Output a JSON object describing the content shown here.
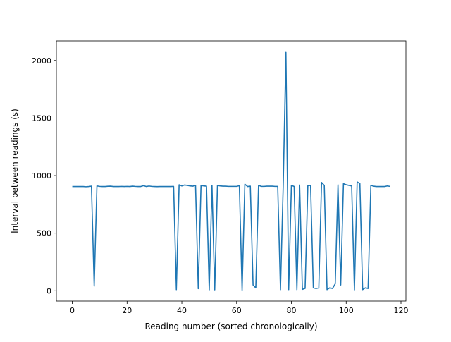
{
  "chart_data": {
    "type": "line",
    "title": "",
    "xlabel": "Reading number (sorted chronologically)",
    "ylabel": "Interval between readings (s)",
    "xlim": [
      -5.8,
      121.8
    ],
    "ylim": [
      -90,
      2170
    ],
    "xticks": [
      0,
      20,
      40,
      60,
      80,
      100,
      120
    ],
    "yticks": [
      0,
      500,
      1000,
      1500,
      2000
    ],
    "grid": false,
    "line_color": "#1f77b4",
    "series": [
      {
        "values": [
          905,
          905,
          905,
          905,
          905,
          903,
          905,
          908,
          40,
          910,
          906,
          905,
          905,
          907,
          908,
          905,
          905,
          905,
          906,
          905,
          906,
          905,
          908,
          906,
          905,
          905,
          912,
          905,
          909,
          906,
          905,
          904,
          905,
          905,
          905,
          905,
          905,
          906,
          10,
          920,
          910,
          918,
          915,
          910,
          908,
          915,
          18,
          915,
          910,
          908,
          8,
          915,
          8,
          915,
          910,
          908,
          908,
          906,
          906,
          906,
          906,
          912,
          5,
          925,
          905,
          908,
          50,
          25,
          915,
          906,
          906,
          908,
          908,
          908,
          906,
          906,
          10,
          910,
          2070,
          10,
          915,
          905,
          10,
          918,
          12,
          20,
          912,
          915,
          25,
          20,
          25,
          940,
          915,
          10,
          25,
          20,
          60,
          920,
          50,
          930,
          920,
          915,
          910,
          8,
          945,
          930,
          10,
          25,
          20,
          915,
          908,
          905,
          905,
          905,
          905,
          910,
          906
        ]
      }
    ]
  }
}
